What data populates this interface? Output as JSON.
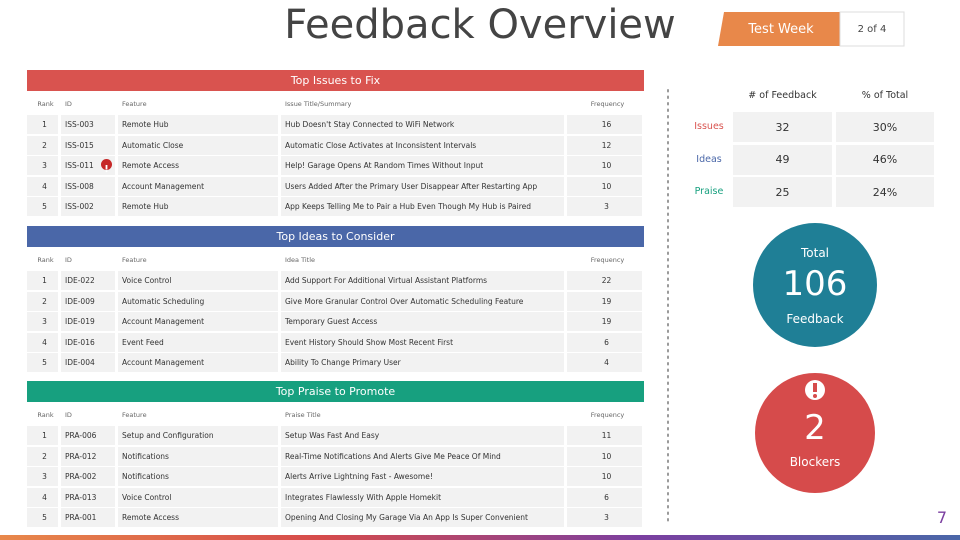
{
  "header": {
    "title": "Feedback Overview",
    "badge": "Test Week",
    "page_of": "2 of 4"
  },
  "tables": [
    {
      "title": "Top Issues to Fix",
      "columns": [
        "Rank",
        "ID",
        "Feature",
        "Issue Title/Summary",
        "Frequency"
      ],
      "rows": [
        [
          1,
          "ISS-003",
          "Remote Hub",
          "Hub Doesn't Stay Connected to WiFi Network",
          16
        ],
        [
          2,
          "ISS-015",
          "Automatic Close",
          "Automatic Close Activates at Inconsistent Intervals",
          12
        ],
        [
          3,
          "ISS-011",
          "Remote Access",
          "Help! Garage Opens At Random Times Without Input",
          10
        ],
        [
          4,
          "ISS-008",
          "Account Management",
          "Users Added After the Primary User Disappear After Restarting App",
          10
        ],
        [
          5,
          "ISS-002",
          "Remote Hub",
          "App Keeps Telling Me to Pair a Hub Even Though My Hub is Paired",
          3
        ]
      ]
    },
    {
      "title": "Top Ideas to Consider",
      "columns": [
        "Rank",
        "ID",
        "Feature",
        "Idea Title",
        "Frequency"
      ],
      "rows": [
        [
          1,
          "IDE-022",
          "Voice Control",
          "Add Support For Additional Virtual Assistant Platforms",
          22
        ],
        [
          2,
          "IDE-009",
          "Automatic Scheduling",
          "Give More Granular Control Over Automatic Scheduling Feature",
          19
        ],
        [
          3,
          "IDE-019",
          "Account Management",
          "Temporary Guest Access",
          19
        ],
        [
          4,
          "IDE-016",
          "Event Feed",
          "Event History Should Show Most Recent First",
          6
        ],
        [
          5,
          "IDE-004",
          "Account Management",
          "Ability To Change Primary User",
          4
        ]
      ]
    },
    {
      "title": "Top Praise to Promote",
      "columns": [
        "Rank",
        "ID",
        "Feature",
        "Praise Title",
        "Frequency"
      ],
      "rows": [
        [
          1,
          "PRA-006",
          "Setup and Configuration",
          "Setup Was Fast And Easy",
          11
        ],
        [
          2,
          "PRA-012",
          "Notifications",
          "Real-Time Notifications And Alerts Give Me Peace Of Mind",
          10
        ],
        [
          3,
          "PRA-002",
          "Notifications",
          "Alerts Arrive Lightning Fast - Awesome!",
          10
        ],
        [
          4,
          "PRA-013",
          "Voice Control",
          "Integrates Flawlessly With Apple Homekit",
          6
        ],
        [
          5,
          "PRA-001",
          "Remote Access",
          "Opening And Closing My Garage Via An App Is Super Convenient",
          3
        ]
      ]
    }
  ],
  "summary": {
    "columns": [
      "# of Feedback",
      "% of Total"
    ],
    "rows": [
      {
        "label": "Issues",
        "count": 32,
        "share": "30%"
      },
      {
        "label": "Ideas",
        "count": 49,
        "share": "46%"
      },
      {
        "label": "Praise",
        "count": 25,
        "share": "24%"
      }
    ]
  },
  "total": {
    "label": "Total",
    "value": 106,
    "caption": "Feedback"
  },
  "blockers": {
    "value": 2,
    "caption": "Blockers"
  },
  "page_number": 7
}
